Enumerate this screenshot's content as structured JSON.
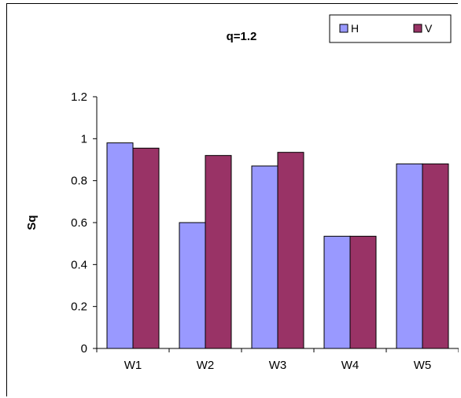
{
  "chart_data": {
    "type": "bar",
    "title": "q=1.2",
    "xlabel": "",
    "ylabel": "Sq",
    "categories": [
      "W1",
      "W2",
      "W3",
      "W4",
      "W5"
    ],
    "series": [
      {
        "name": "H",
        "values": [
          0.98,
          0.6,
          0.87,
          0.535,
          0.88
        ],
        "color": "#9999ff"
      },
      {
        "name": "V",
        "values": [
          0.955,
          0.92,
          0.935,
          0.535,
          0.88
        ],
        "color": "#993366"
      }
    ],
    "ylim": [
      0,
      1.2
    ],
    "yticks": [
      "0",
      "0.2",
      "0.4",
      "0.6",
      "0.8",
      "1",
      "1.2"
    ],
    "grid": false,
    "legend_position": "top-right"
  }
}
